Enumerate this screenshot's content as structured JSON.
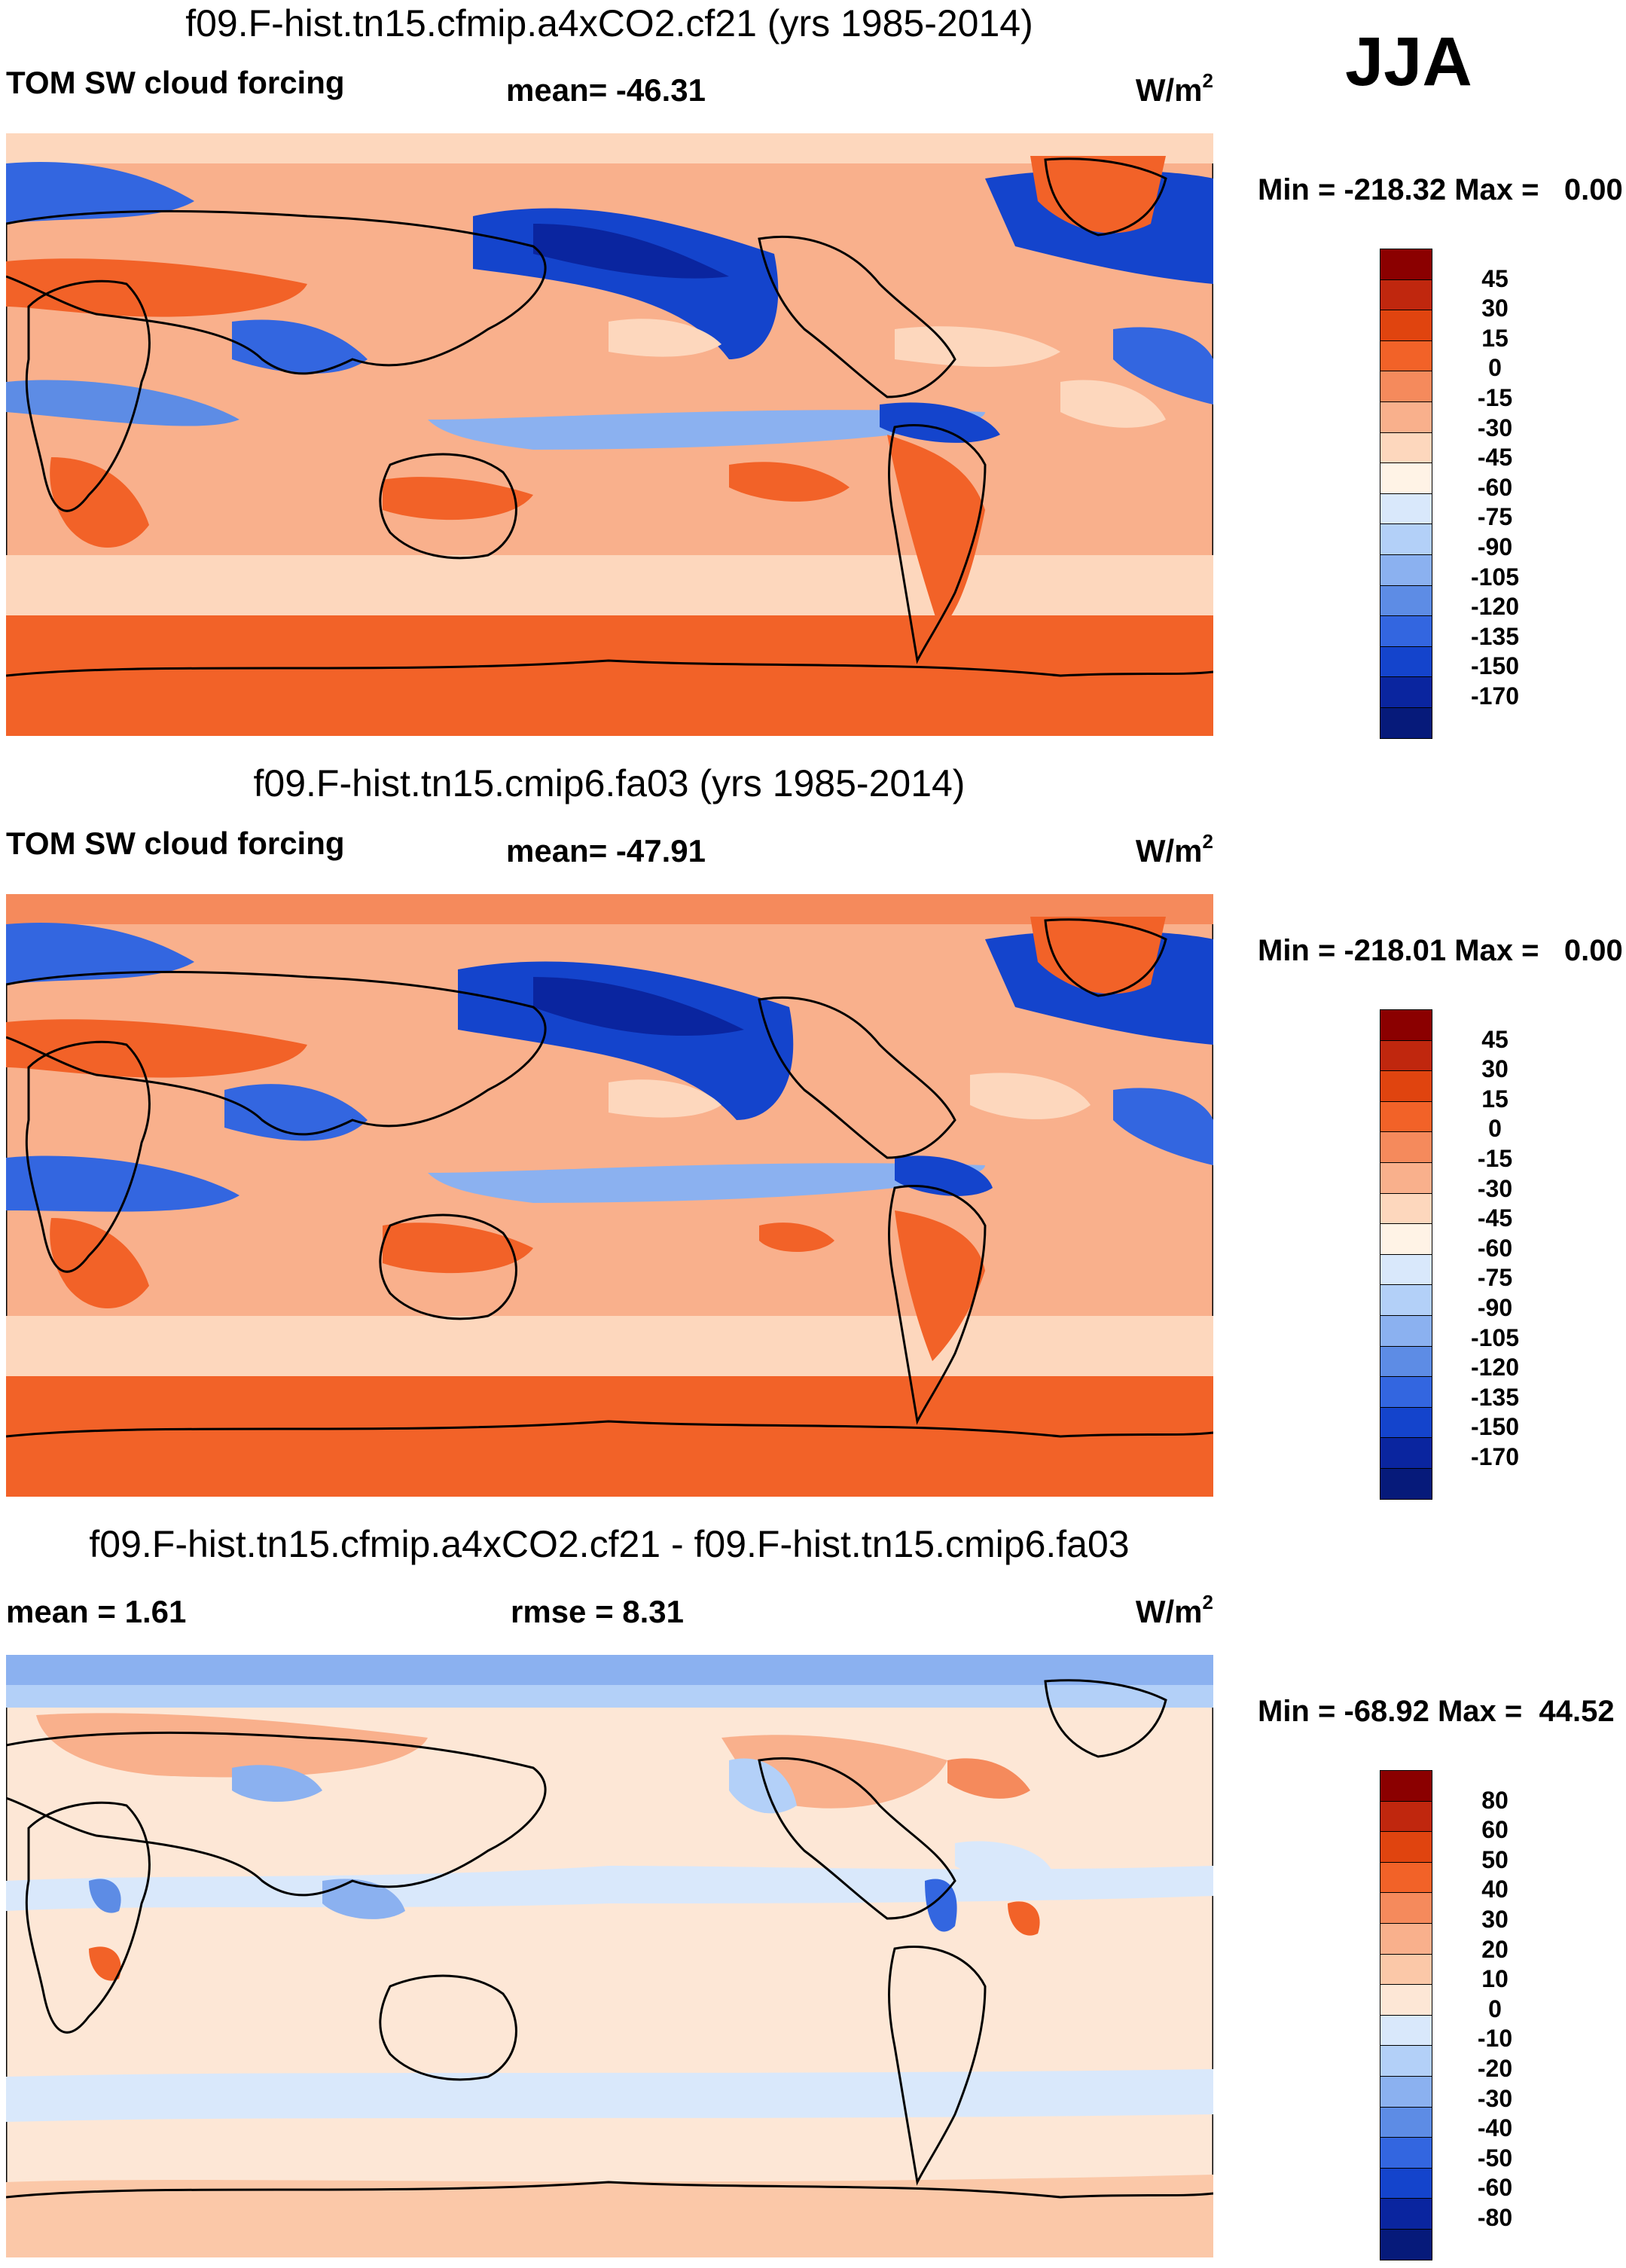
{
  "season": "JJA",
  "panels": [
    {
      "title": "f09.F-hist.tn15.cfmip.a4xCO2.cf21 (yrs 1985-2014)",
      "left_label": "TOM SW cloud forcing",
      "center_label": "mean= -46.31",
      "units_base": "W/m",
      "units_exp": "2",
      "minmax": "Min = -218.32 Max =   0.00",
      "levels": [
        "45",
        "30",
        "15",
        "0",
        "-15",
        "-30",
        "-45",
        "-60",
        "-75",
        "-90",
        "-105",
        "-120",
        "-135",
        "-150",
        "-170"
      ],
      "colors": [
        "#8b0000",
        "#c0270e",
        "#e0440f",
        "#f26228",
        "#f58a5c",
        "#f9b08c",
        "#fdd7bd",
        "#fff3e6",
        "#d9e8fb",
        "#b3d0f8",
        "#8bb1f0",
        "#5d8ce5",
        "#3366e0",
        "#1444cc",
        "#0a259f",
        "#061a7a"
      ]
    },
    {
      "title": "f09.F-hist.tn15.cmip6.fa03 (yrs 1985-2014)",
      "left_label": "TOM SW cloud forcing",
      "center_label": "mean= -47.91",
      "units_base": "W/m",
      "units_exp": "2",
      "minmax": "Min = -218.01 Max =   0.00",
      "levels": [
        "45",
        "30",
        "15",
        "0",
        "-15",
        "-30",
        "-45",
        "-60",
        "-75",
        "-90",
        "-105",
        "-120",
        "-135",
        "-150",
        "-170"
      ],
      "colors": [
        "#8b0000",
        "#c0270e",
        "#e0440f",
        "#f26228",
        "#f58a5c",
        "#f9b08c",
        "#fdd7bd",
        "#fff3e6",
        "#d9e8fb",
        "#b3d0f8",
        "#8bb1f0",
        "#5d8ce5",
        "#3366e0",
        "#1444cc",
        "#0a259f",
        "#061a7a"
      ]
    },
    {
      "title": "f09.F-hist.tn15.cfmip.a4xCO2.cf21 - f09.F-hist.tn15.cmip6.fa03",
      "left_label": "mean =   1.61",
      "center_label": "rmse =   8.31",
      "units_base": "W/m",
      "units_exp": "2",
      "minmax": "Min = -68.92 Max =  44.52",
      "levels": [
        "80",
        "60",
        "50",
        "40",
        "30",
        "20",
        "10",
        "0",
        "-10",
        "-20",
        "-30",
        "-40",
        "-50",
        "-60",
        "-80"
      ],
      "colors": [
        "#8b0000",
        "#c0270e",
        "#e0440f",
        "#f26228",
        "#f58a5c",
        "#f9b08c",
        "#fbc8a8",
        "#fde7d6",
        "#d9e8fb",
        "#b3d0f8",
        "#8bb1f0",
        "#5d8ce5",
        "#3366e0",
        "#1444cc",
        "#0a259f",
        "#061a7a"
      ]
    }
  ]
}
